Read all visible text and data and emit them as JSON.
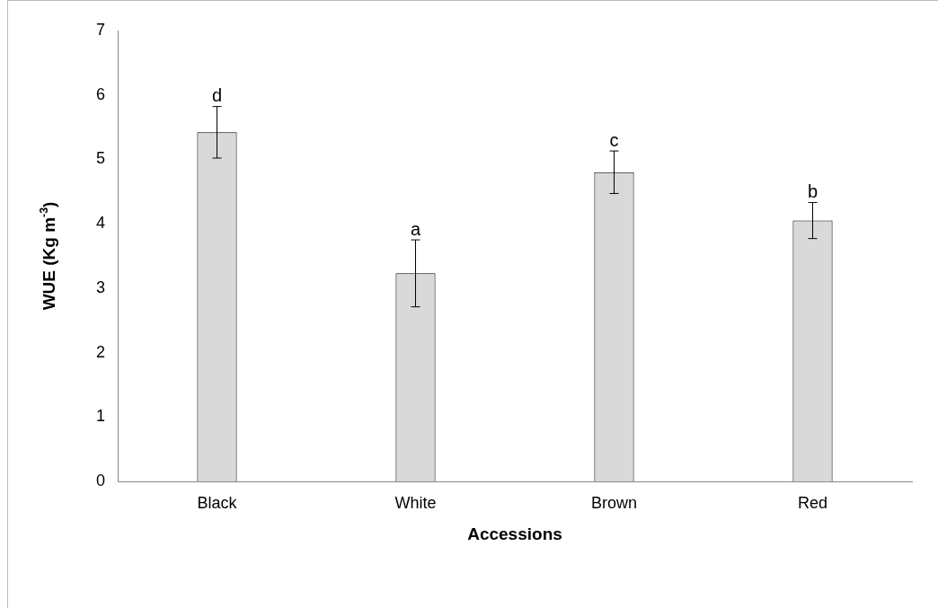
{
  "chart_data": {
    "type": "bar",
    "xlabel": "Accessions",
    "ylabel": "WUE (Kg m$^{-3}$)",
    "categories": [
      "Black",
      "White",
      "Brown",
      "Red"
    ],
    "series": [
      {
        "color": "#d9d9d9",
        "values": [
          5.42,
          3.23,
          4.8,
          4.05
        ],
        "errors": [
          0.4,
          0.52,
          0.33,
          0.28
        ]
      }
    ],
    "ylim": [
      0,
      7
    ],
    "yticks": [
      0,
      1,
      2,
      3,
      4,
      5,
      6,
      7
    ],
    "grid": false,
    "legend": false,
    "annotations": [
      {
        "text": "d",
        "x": "Black",
        "y": 5.82
      },
      {
        "text": "a",
        "x": "White",
        "y": 3.75
      },
      {
        "text": "c",
        "x": "Brown",
        "y": 5.13
      },
      {
        "text": "b",
        "x": "Red",
        "y": 4.33
      }
    ]
  }
}
